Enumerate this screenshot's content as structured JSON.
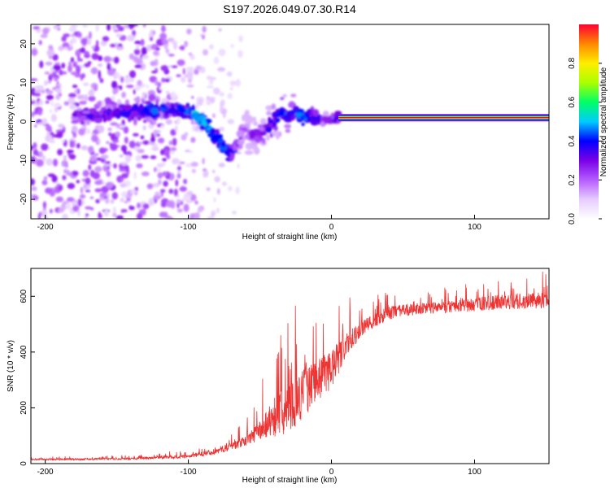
{
  "title": "S197.2026.049.07.30.R14",
  "colors": {
    "line": "#ee3333",
    "axis": "#000000",
    "colormap": [
      "#ffffff",
      "#e6ccff",
      "#b45cff",
      "#7a00e6",
      "#0000ff",
      "#00ccff",
      "#00ff66",
      "#aaff00",
      "#ffee00",
      "#ff8800",
      "#ff0033"
    ]
  },
  "chart_data": [
    {
      "type": "heatmap",
      "xlabel": "Height of straight line (km)",
      "ylabel": "Frequency (Hz)",
      "xlim": [
        -210,
        152
      ],
      "ylim": [
        -25,
        25
      ],
      "xticks": [
        -200,
        -100,
        0,
        100
      ],
      "yticks": [
        -20,
        -10,
        0,
        10,
        20
      ],
      "colorbar": {
        "label": "Normalized spectral amplitude",
        "range": [
          0.0,
          1.0
        ],
        "ticks": [
          0.0,
          0.2,
          0.4,
          0.6,
          0.8
        ]
      },
      "ridge_km": [
        -180,
        -160,
        -140,
        -125,
        -110,
        -100,
        -95,
        -90,
        -85,
        -80,
        -75,
        -70,
        -65,
        -60,
        -55,
        -50,
        -45,
        -40,
        -35,
        -30,
        -25,
        -20,
        -15,
        -10,
        -5,
        0,
        5
      ],
      "ridge_hz": [
        1.5,
        2.0,
        2.5,
        3.0,
        3.0,
        2.5,
        2.0,
        0.0,
        -2.0,
        -4.0,
        -7.0,
        -8.0,
        -5.0,
        -2.0,
        -3.0,
        -4.0,
        -2.0,
        0.0,
        2.0,
        1.5,
        3.0,
        1.0,
        2.0,
        1.0,
        0.5,
        0.5,
        0.8
      ],
      "ridge_amp": [
        0.35,
        0.4,
        0.45,
        0.5,
        0.45,
        0.5,
        0.55,
        0.6,
        0.5,
        0.55,
        0.5,
        0.45,
        0.3,
        0.3,
        0.35,
        0.35,
        0.4,
        0.45,
        0.5,
        0.45,
        0.5,
        0.55,
        0.45,
        0.4,
        0.35,
        0.35,
        0.4
      ],
      "line_segment": {
        "x_start_km": 5,
        "x_end_km": 152,
        "frequency_hz": 1.0,
        "amplitude": 1.0
      }
    },
    {
      "type": "line",
      "xlabel": "Height of straight line (km)",
      "ylabel": "SNR (10 * v/v)",
      "xlim": [
        -210,
        152
      ],
      "ylim": [
        0,
        700
      ],
      "xticks": [
        -200,
        -100,
        0,
        100
      ],
      "yticks": [
        0,
        200,
        400,
        600
      ],
      "series": [
        {
          "name": "SNR",
          "envelope_x": [
            -210,
            -180,
            -140,
            -100,
            -80,
            -60,
            -50,
            -40,
            -30,
            -20,
            -10,
            0,
            10,
            20,
            40,
            60,
            80,
            100,
            120,
            152
          ],
          "envelope_y": [
            15,
            15,
            18,
            25,
            45,
            80,
            120,
            170,
            200,
            250,
            300,
            340,
            420,
            480,
            540,
            555,
            560,
            570,
            580,
            585
          ],
          "spike_amplitude": [
            10,
            10,
            12,
            20,
            35,
            60,
            120,
            250,
            300,
            300,
            250,
            250,
            150,
            100,
            80,
            70,
            70,
            80,
            90,
            95
          ]
        }
      ]
    }
  ]
}
